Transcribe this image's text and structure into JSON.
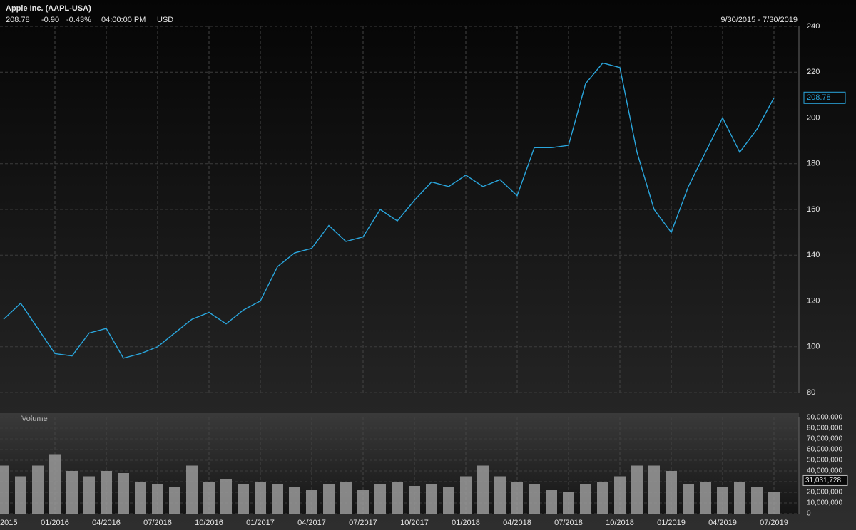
{
  "header": {
    "title": "Apple Inc. (AAPL-USA)",
    "quote": [
      "208.78",
      "-0.90",
      "-0.43%",
      "04:00:00 PM",
      "USD"
    ],
    "range": "9/30/2015 - 7/30/2019"
  },
  "chart_data": [
    {
      "type": "line",
      "color": "#2aa6dd",
      "grid": true,
      "categories": [
        "2015",
        null,
        null,
        "01/2016",
        null,
        null,
        "04/2016",
        null,
        null,
        "07/2016",
        null,
        null,
        "10/2016",
        null,
        null,
        "01/2017",
        null,
        null,
        "04/2017",
        null,
        null,
        "07/2017",
        null,
        null,
        "10/2017",
        null,
        null,
        "01/2018",
        null,
        null,
        "04/2018",
        null,
        null,
        "07/2018",
        null,
        null,
        "10/2018",
        null,
        null,
        "01/2019",
        null,
        null,
        "04/2019",
        null,
        null,
        "07/2019"
      ],
      "values": [
        112,
        119,
        108,
        97,
        96,
        106,
        108,
        95,
        97,
        100,
        106,
        112,
        115,
        110,
        116,
        120,
        135,
        141,
        143,
        153,
        146,
        148,
        160,
        155,
        164,
        172,
        170,
        175,
        170,
        173,
        166,
        187,
        187,
        188,
        215,
        224,
        222,
        185,
        160,
        150,
        170,
        185,
        200,
        185,
        195,
        208.78
      ],
      "current": 208.78,
      "ylim": [
        80,
        240
      ],
      "yticks": [
        80,
        100,
        120,
        140,
        160,
        180,
        200,
        220,
        240
      ]
    },
    {
      "type": "bar",
      "title": "Volume",
      "color": "#9a9a9a",
      "grid": true,
      "values": [
        45000000,
        35000000,
        45000000,
        55000000,
        40000000,
        35000000,
        40000000,
        38000000,
        30000000,
        28000000,
        25000000,
        45000000,
        30000000,
        32000000,
        28000000,
        30000000,
        28000000,
        25000000,
        22000000,
        28000000,
        30000000,
        22000000,
        28000000,
        30000000,
        26000000,
        28000000,
        25000000,
        35000000,
        45000000,
        35000000,
        30000000,
        28000000,
        22000000,
        20000000,
        28000000,
        30000000,
        35000000,
        45000000,
        45000000,
        40000000,
        28000000,
        30000000,
        25000000,
        30000000,
        25000000,
        20000000
      ],
      "current": {
        "value": 31031728,
        "label": "31,031,728"
      },
      "ylim": [
        0,
        90000000
      ],
      "yticks": [
        0,
        {
          "value": 10000000,
          "label": "10,000,000"
        },
        {
          "value": 20000000,
          "label": "20,000,000"
        },
        {
          "value": 30000000,
          "label": "30,000,000"
        },
        {
          "value": 40000000,
          "label": "40,000,000"
        },
        {
          "value": 50000000,
          "label": "50,000,000"
        },
        {
          "value": 60000000,
          "label": "60,000,000"
        },
        {
          "value": 70000000,
          "label": "70,000,000"
        },
        {
          "value": 80000000,
          "label": "80,000,000"
        },
        {
          "value": 90000000,
          "label": "90,000,000"
        }
      ]
    }
  ]
}
